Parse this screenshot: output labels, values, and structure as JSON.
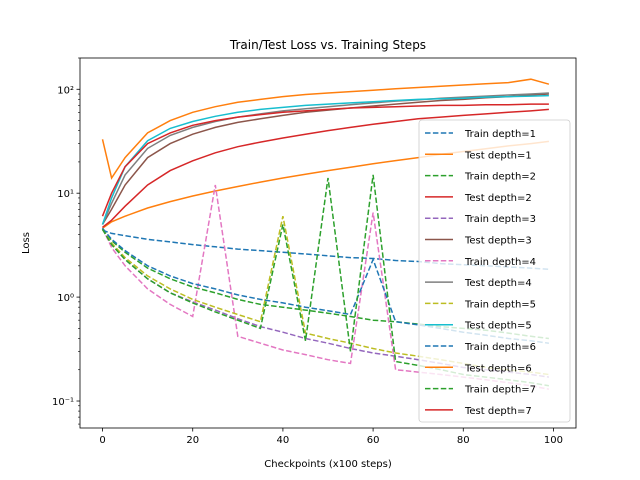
{
  "chart_data": {
    "type": "line",
    "title": "Train/Test Loss vs. Training Steps",
    "xlabel": "Checkpoints (x100 steps)",
    "ylabel": "Loss",
    "yscale": "log",
    "xlim": [
      -5,
      105
    ],
    "ylim": [
      0.055,
      200
    ],
    "x_ticks": [
      0,
      20,
      40,
      60,
      80,
      100
    ],
    "y_ticks": [
      {
        "value": 0.1,
        "label": "10⁻¹"
      },
      {
        "value": 1,
        "label": "10⁰"
      },
      {
        "value": 10,
        "label": "10¹"
      },
      {
        "value": 100,
        "label": "10²"
      }
    ],
    "legend_position": "lower-right",
    "x": [
      0,
      2,
      5,
      10,
      15,
      20,
      25,
      30,
      35,
      40,
      45,
      50,
      55,
      60,
      65,
      70,
      75,
      80,
      85,
      90,
      95,
      99
    ],
    "series": [
      {
        "name": "Train depth=1",
        "color": "#1f77b4",
        "dash": "dashed",
        "values": [
          4.4,
          4.1,
          3.9,
          3.6,
          3.4,
          3.2,
          3.05,
          2.9,
          2.8,
          2.7,
          2.6,
          2.5,
          2.4,
          2.35,
          2.25,
          2.2,
          2.1,
          2.05,
          2.0,
          1.95,
          1.9,
          1.85
        ]
      },
      {
        "name": "Test depth=1",
        "color": "#ff7f0e",
        "dash": "solid",
        "values": [
          4.6,
          5.3,
          6.0,
          7.2,
          8.3,
          9.4,
          10.5,
          11.6,
          12.8,
          14.0,
          15.2,
          16.5,
          17.8,
          19.2,
          20.6,
          22.0,
          23.6,
          25.2,
          26.8,
          28.5,
          30.0,
          31.5
        ]
      },
      {
        "name": "Train depth=2",
        "color": "#2ca02c",
        "dash": "dashed",
        "values": [
          4.5,
          3.5,
          2.7,
          1.9,
          1.5,
          1.25,
          1.1,
          0.95,
          0.85,
          0.8,
          0.75,
          0.7,
          0.65,
          0.6,
          0.58,
          0.55,
          0.52,
          0.5,
          0.48,
          0.45,
          0.42,
          0.4
        ]
      },
      {
        "name": "Test depth=2",
        "color": "#d62728",
        "dash": "solid",
        "values": [
          4.7,
          5.5,
          7.5,
          12.0,
          16.5,
          20.5,
          24.5,
          28.0,
          31.0,
          34.0,
          37.0,
          40.0,
          43.0,
          46.0,
          49.0,
          52.0,
          54.0,
          56.0,
          58.0,
          60.0,
          62.0,
          64.0
        ]
      },
      {
        "name": "Train depth=3",
        "color": "#9467bd",
        "dash": "dashed",
        "values": [
          4.5,
          3.2,
          2.3,
          1.5,
          1.1,
          0.9,
          0.75,
          0.62,
          0.52,
          0.46,
          0.4,
          0.36,
          0.32,
          0.29,
          0.27,
          0.25,
          0.23,
          0.21,
          0.2,
          0.19,
          0.18,
          0.17
        ]
      },
      {
        "name": "Test depth=3",
        "color": "#8c564b",
        "dash": "solid",
        "values": [
          5.0,
          7.0,
          12.0,
          22.0,
          30.0,
          37.0,
          43.0,
          48.0,
          52.0,
          56.0,
          60.0,
          63.0,
          66.0,
          69.0,
          72.0,
          75.0,
          78.0,
          80.0,
          83.0,
          85.0,
          88.0,
          90.0
        ]
      },
      {
        "name": "Train depth=4",
        "color": "#e377c2",
        "dash": "dashed",
        "values": [
          4.6,
          3.0,
          2.0,
          1.2,
          0.85,
          0.65,
          12.0,
          0.42,
          0.36,
          0.31,
          0.28,
          0.25,
          0.23,
          6.5,
          0.2,
          0.19,
          0.18,
          0.17,
          0.16,
          0.15,
          0.14,
          0.13
        ]
      },
      {
        "name": "Test depth=4",
        "color": "#7f7f7f",
        "dash": "solid",
        "values": [
          5.0,
          8.0,
          15.0,
          27.0,
          36.0,
          43.0,
          49.0,
          54.0,
          58.0,
          62.0,
          65.0,
          68.0,
          71.0,
          74.0,
          77.0,
          79.0,
          82.0,
          84.0,
          86.0,
          88.0,
          90.0,
          92.0
        ]
      },
      {
        "name": "Train depth=5",
        "color": "#bcbd22",
        "dash": "dashed",
        "values": [
          4.5,
          3.3,
          2.4,
          1.6,
          1.2,
          0.95,
          0.8,
          0.68,
          0.58,
          6.0,
          0.45,
          0.4,
          0.36,
          0.32,
          0.29,
          0.27,
          0.25,
          0.23,
          0.21,
          0.2,
          0.19,
          0.18
        ]
      },
      {
        "name": "Test depth=5",
        "color": "#17becf",
        "dash": "solid",
        "values": [
          5.0,
          9.0,
          18.0,
          32.0,
          42.0,
          49.0,
          55.0,
          60.0,
          64.0,
          67.0,
          70.0,
          72.0,
          74.0,
          76.0,
          78.0,
          80.0,
          81.0,
          82.0,
          84.0,
          85.0,
          86.0,
          87.0
        ]
      },
      {
        "name": "Train depth=6",
        "color": "#1f77b4",
        "dash": "dashed",
        "values": [
          4.6,
          3.6,
          2.8,
          2.0,
          1.6,
          1.35,
          1.2,
          1.05,
          0.95,
          0.88,
          0.8,
          0.74,
          0.68,
          2.3,
          0.58,
          0.54,
          0.5,
          0.46,
          0.43,
          0.4,
          0.38,
          0.36
        ]
      },
      {
        "name": "Test depth=6",
        "color": "#ff7f0e",
        "dash": "solid",
        "values": [
          33.0,
          14.0,
          22.0,
          38.0,
          50.0,
          60.0,
          68.0,
          75.0,
          80.0,
          85.0,
          89.0,
          92.0,
          95.0,
          98.0,
          101.0,
          104.0,
          107.0,
          110.0,
          113.0,
          116.0,
          125.0,
          112.0
        ]
      },
      {
        "name": "Train depth=7",
        "color": "#2ca02c",
        "dash": "dashed",
        "values": [
          4.5,
          3.2,
          2.3,
          1.5,
          1.1,
          0.88,
          0.72,
          0.6,
          0.5,
          5.0,
          0.38,
          14.0,
          0.3,
          15.0,
          0.24,
          0.22,
          0.2,
          0.18,
          0.17,
          0.16,
          0.15,
          0.14
        ]
      },
      {
        "name": "Test depth=7",
        "color": "#d62728",
        "dash": "solid",
        "values": [
          6.0,
          10.0,
          18.0,
          30.0,
          38.0,
          45.0,
          50.0,
          54.0,
          57.0,
          60.0,
          62.0,
          64.0,
          66.0,
          67.0,
          68.0,
          69.0,
          70.0,
          70.0,
          71.0,
          71.0,
          72.0,
          72.0
        ]
      }
    ]
  }
}
